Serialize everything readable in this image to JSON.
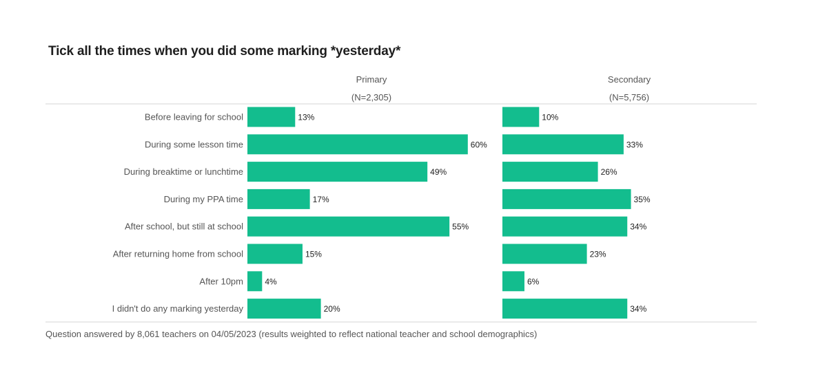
{
  "chart_data": {
    "type": "bar",
    "orientation": "horizontal",
    "title": "Tick all the times when you did some marking *yesterday*",
    "categories": [
      "Before leaving for school",
      "During some lesson time",
      "During breaktime or lunchtime",
      "During my PPA time",
      "After school, but still at school",
      "After returning home from school",
      "After 10pm",
      "I didn't do any marking yesterday"
    ],
    "series": [
      {
        "name": "Primary",
        "n_label": "(N=2,305)",
        "values": [
          13,
          60,
          49,
          17,
          55,
          15,
          4,
          20
        ]
      },
      {
        "name": "Secondary",
        "n_label": "(N=5,756)",
        "values": [
          10,
          33,
          26,
          35,
          34,
          23,
          6,
          34
        ]
      }
    ],
    "value_suffix": "%",
    "bar_color": "#13bd8e",
    "xlim": [
      0,
      100
    ],
    "grid": false,
    "legend": "none"
  },
  "footnote": "Question answered by 8,061 teachers on 04/05/2023 (results weighted to reflect national teacher and school demographics)"
}
